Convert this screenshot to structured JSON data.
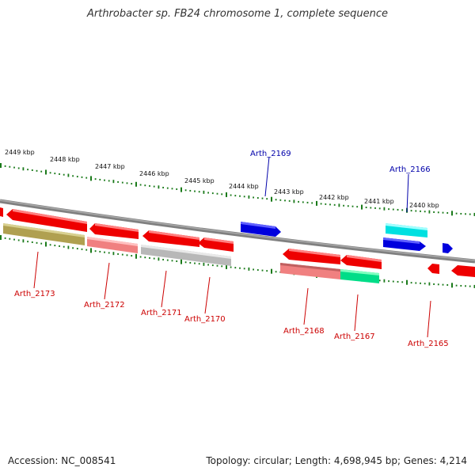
{
  "title": "Arthrobacter sp. FB24 chromosome 1, complete sequence",
  "footer": {
    "accession": "Accession: NC_008541",
    "topology": "Topology: circular; Length: 4,698,945 bp; Genes: 4,214"
  },
  "scale_labels": [
    "2449 kbp",
    "2448 kbp",
    "2447 kbp",
    "2446 kbp",
    "2445 kbp",
    "2444 kbp",
    "2443 kbp",
    "2442 kbp",
    "2441 kbp",
    "2440 kbp"
  ],
  "gene_labels": [
    "Arth_2169",
    "Arth_2166",
    "Arth_2173",
    "Arth_2172",
    "Arth_2171",
    "Arth_2170",
    "Arth_2168",
    "Arth_2167",
    "Arth_2165"
  ],
  "colors": {
    "red": "#ee0000",
    "blue": "#0000dd",
    "cyan": "#00e0e0",
    "olive": "#b0a050",
    "pink": "#f08080",
    "gray": "#b8b8b8",
    "green": "#00dd88",
    "backbone": "#808080",
    "tick": "#1a7a1a"
  }
}
